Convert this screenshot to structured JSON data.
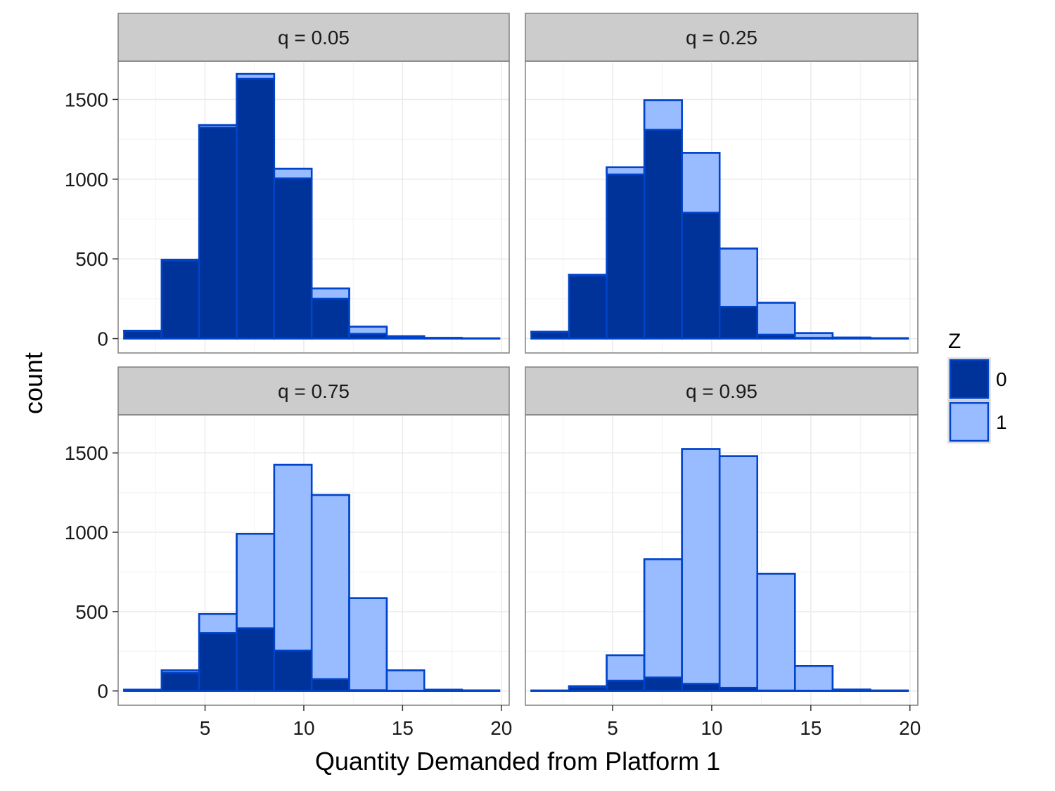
{
  "chart_data": {
    "type": "bar",
    "chart_kind": "faceted stacked histogram",
    "xlabel": "Quantity Demanded from Platform 1",
    "ylabel": "count",
    "xlim": [
      0.6,
      20.4
    ],
    "ylim": [
      -90,
      1740
    ],
    "x_ticks": [
      5,
      10,
      15,
      20
    ],
    "y_ticks": [
      0,
      500,
      1000,
      1500
    ],
    "grid": true,
    "bin_edges": [
      0.9,
      2.8,
      4.7,
      6.6,
      8.5,
      10.4,
      12.3,
      14.2,
      16.1,
      18.0,
      19.9
    ],
    "colors": {
      "fill": {
        "0": "#003399",
        "1": "#99bbff"
      },
      "outline": "#0044cc",
      "inner_outline": "#111111"
    },
    "legend": {
      "title": "Z",
      "position": "right",
      "entries": [
        "0",
        "1"
      ]
    },
    "panels": [
      {
        "label": "q = 0.05",
        "series": [
          {
            "name": "0",
            "values": [
              47,
              490,
              1325,
              1630,
              1005,
              250,
              30,
              10,
              2,
              1
            ]
          },
          {
            "name": "1",
            "values": [
              3,
              5,
              15,
              30,
              60,
              65,
              45,
              5,
              3,
              1
            ]
          }
        ]
      },
      {
        "label": "q = 0.25",
        "series": [
          {
            "name": "0",
            "values": [
              40,
              395,
              1030,
              1310,
              790,
              200,
              25,
              5,
              2,
              1
            ]
          },
          {
            "name": "1",
            "values": [
              3,
              5,
              45,
              185,
              375,
              365,
              200,
              30,
              5,
              2
            ]
          }
        ]
      },
      {
        "label": "q = 0.75",
        "series": [
          {
            "name": "0",
            "values": [
              5,
              115,
              365,
              395,
              255,
              75,
              5,
              2,
              1,
              1
            ]
          },
          {
            "name": "1",
            "values": [
              3,
              15,
              120,
              595,
              1170,
              1160,
              580,
              128,
              7,
              3
            ]
          }
        ]
      },
      {
        "label": "q = 0.95",
        "series": [
          {
            "name": "0",
            "values": [
              2,
              25,
              65,
              85,
              45,
              20,
              3,
              2,
              1,
              1
            ]
          },
          {
            "name": "1",
            "values": [
              1,
              5,
              160,
              745,
              1480,
              1460,
              735,
              155,
              8,
              2
            ]
          }
        ]
      }
    ]
  }
}
